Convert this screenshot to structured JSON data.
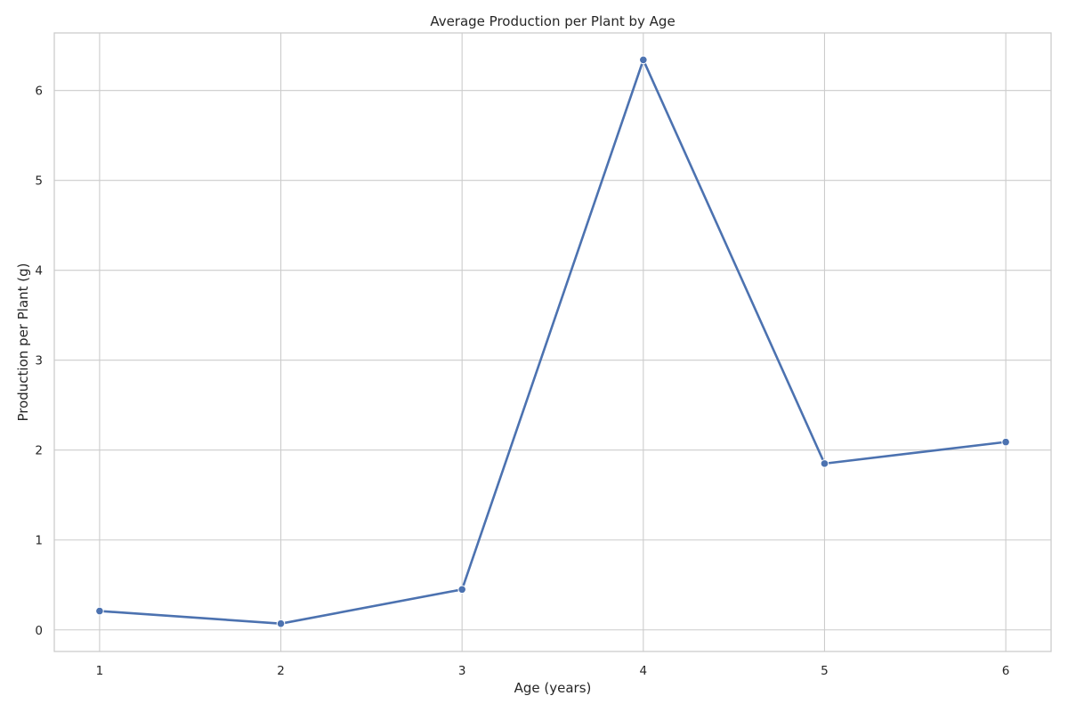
{
  "chart_data": {
    "type": "line",
    "title": "Average Production per Plant by Age",
    "xlabel": "Age (years)",
    "ylabel": "Production per Plant (g)",
    "x": [
      1,
      2,
      3,
      4,
      5,
      6
    ],
    "x_ticks": [
      "1",
      "2",
      "3",
      "4",
      "5",
      "6"
    ],
    "y_ticks": [
      "0",
      "1",
      "2",
      "3",
      "4",
      "5",
      "6"
    ],
    "series": [
      {
        "values": [
          0.21,
          0.07,
          0.45,
          6.34,
          1.85,
          2.09
        ],
        "color": "#4c72b0",
        "marker": "circle"
      }
    ],
    "xlim": [
      0.75,
      6.25
    ],
    "ylim": [
      -0.24,
      6.64
    ],
    "grid": true,
    "legend": "none"
  }
}
